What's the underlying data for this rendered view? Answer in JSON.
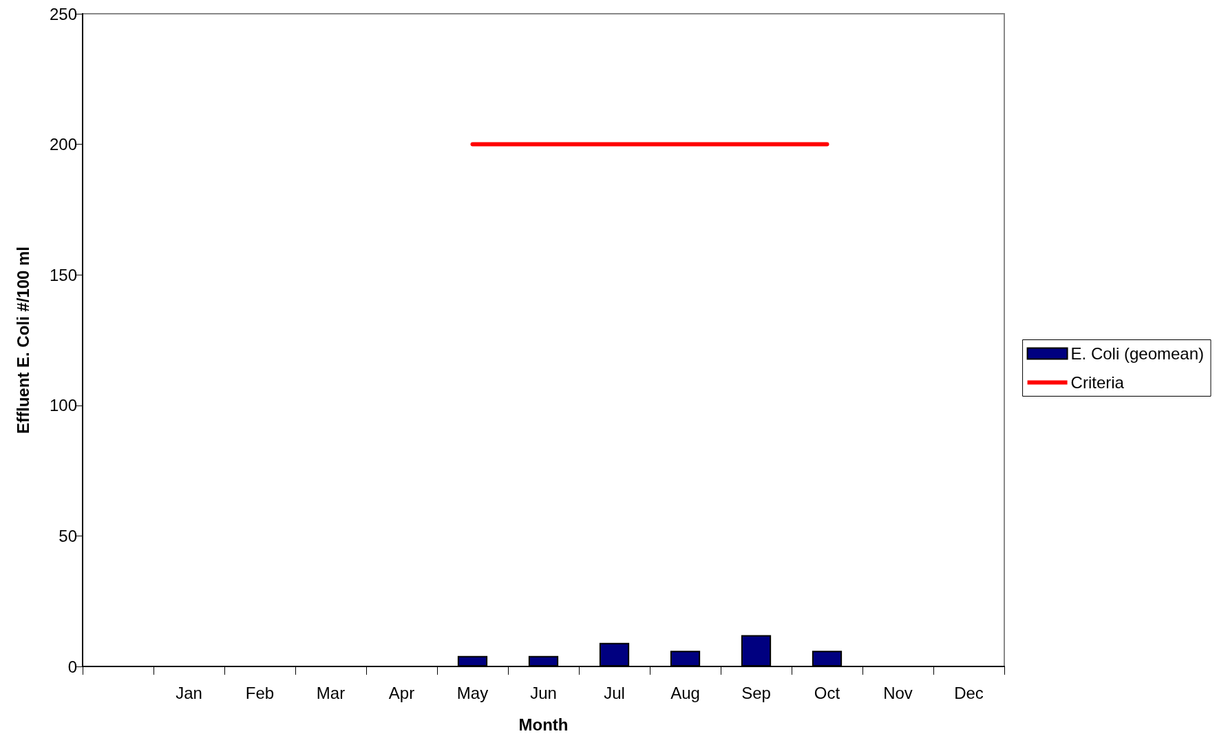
{
  "chart_data": {
    "type": "bar",
    "xlabel": "Month",
    "ylabel": "Effluent E. Coli #/100 ml",
    "categories": [
      null,
      "Jan",
      "Feb",
      "Mar",
      "Apr",
      "May",
      "Jun",
      "Jul",
      "Aug",
      "Sep",
      "Oct",
      "Nov",
      "Dec"
    ],
    "series": [
      {
        "name": "E. Coli (geomean)",
        "color": "#000080",
        "values": [
          null,
          null,
          null,
          null,
          null,
          4,
          4,
          9,
          6,
          12,
          6,
          null,
          null
        ]
      },
      {
        "name": "Criteria",
        "type": "line",
        "color": "#ff0000",
        "values": [
          null,
          null,
          null,
          null,
          null,
          200,
          200,
          200,
          200,
          200,
          200,
          null,
          null
        ]
      }
    ],
    "ylim": [
      0,
      250
    ],
    "yticks": [
      0,
      50,
      100,
      150,
      200,
      250
    ],
    "grid": false,
    "legend": "right",
    "marker": "none"
  }
}
